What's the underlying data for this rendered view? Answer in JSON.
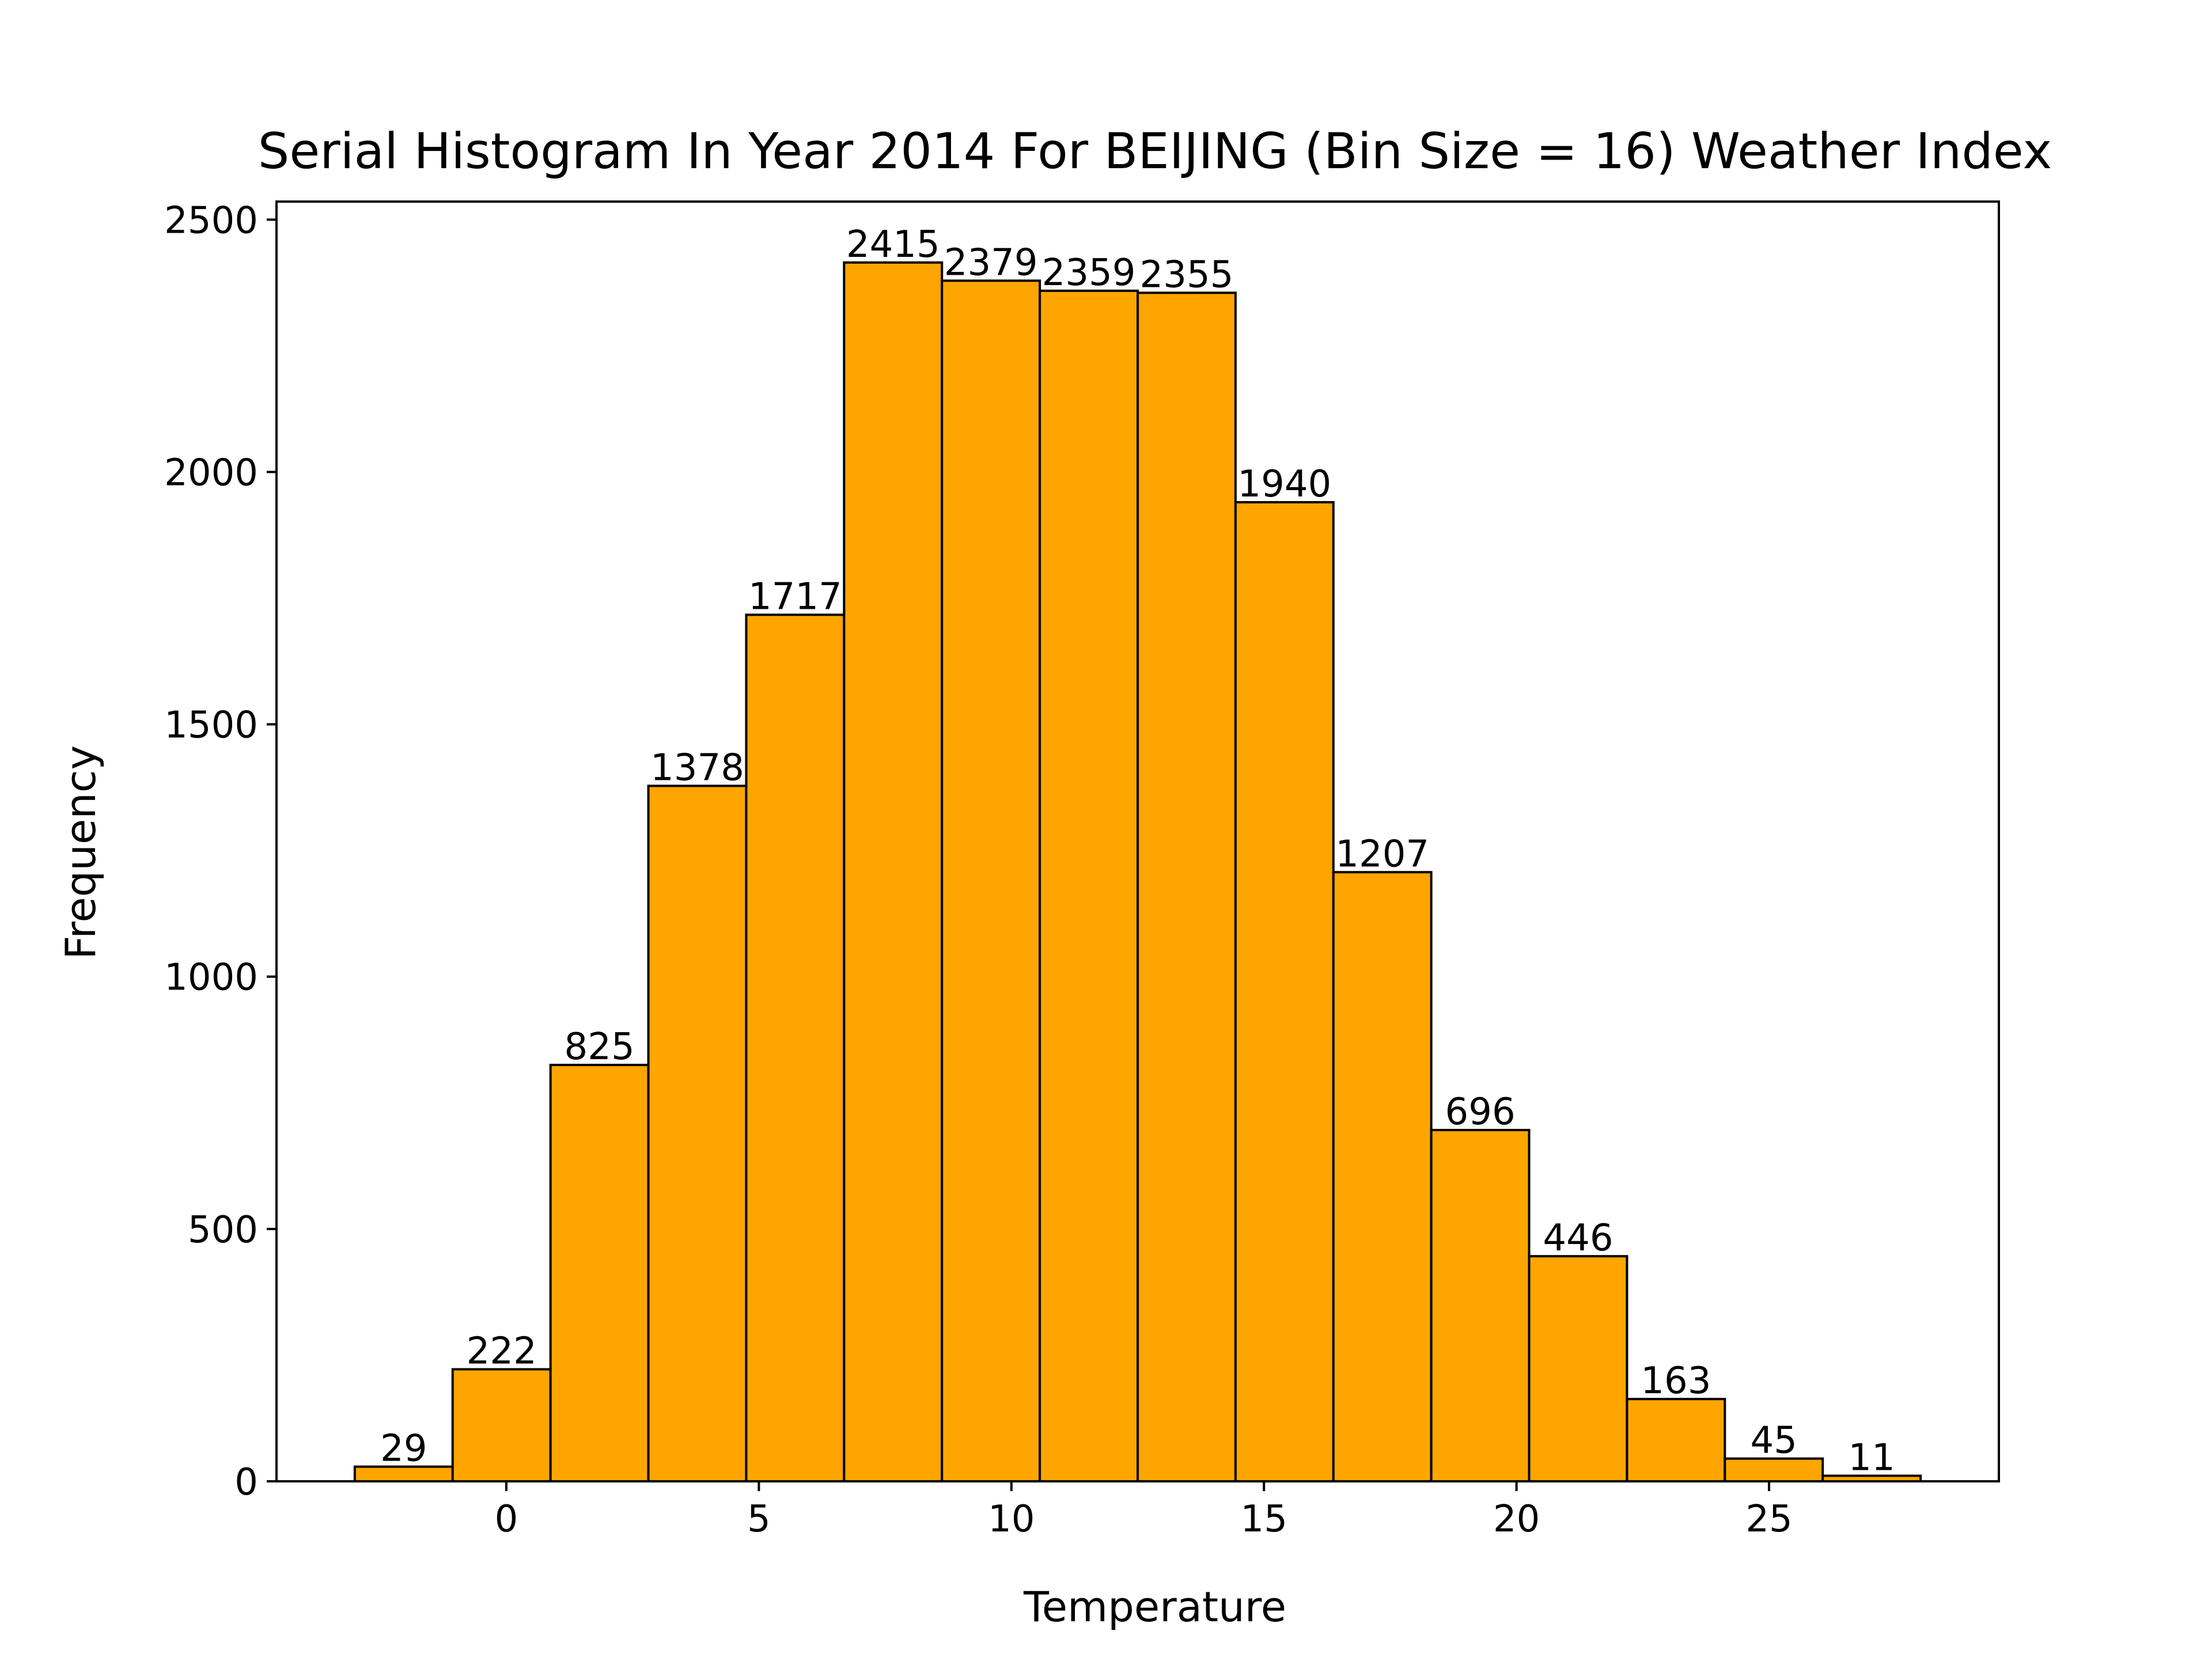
{
  "chart_data": {
    "type": "bar",
    "title": "Serial Histogram In Year 2014 For BEIJING (Bin Size = 16) Weather Index",
    "xlabel": "Temperature",
    "ylabel": "Frequency",
    "bin_edges": [
      -3.0,
      -1.0625,
      0.875,
      2.8125,
      4.75,
      6.6875,
      8.625,
      10.5625,
      12.5,
      14.4375,
      16.375,
      18.3125,
      20.25,
      22.1875,
      24.125,
      26.0625,
      28.0
    ],
    "values": [
      29,
      222,
      825,
      1378,
      1717,
      2415,
      2379,
      2359,
      2355,
      1940,
      1207,
      696,
      446,
      163,
      45,
      11
    ],
    "bar_labels": [
      "29",
      "222",
      "825",
      "1378",
      "1717",
      "2415",
      "2379",
      "2359",
      "2355",
      "1940",
      "1207",
      "696",
      "446",
      "163",
      "45",
      "11"
    ],
    "xlim": [
      -4.55,
      29.55
    ],
    "ylim": [
      0,
      2535.75
    ],
    "x_ticks": [
      0,
      5,
      10,
      15,
      20,
      25
    ],
    "x_tick_labels": [
      "0",
      "5",
      "10",
      "15",
      "20",
      "25"
    ],
    "y_ticks": [
      0,
      500,
      1000,
      1500,
      2000,
      2500
    ],
    "y_tick_labels": [
      "0",
      "500",
      "1000",
      "1500",
      "2000",
      "2500"
    ],
    "bar_color": "#ffa500",
    "edge_color": "#000000",
    "grid": false,
    "legend": "none"
  }
}
